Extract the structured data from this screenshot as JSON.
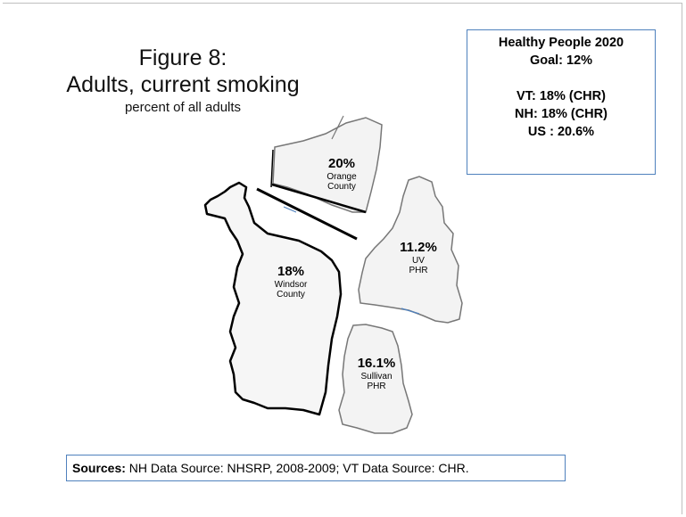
{
  "figure": {
    "title_line1": "Figure 8:",
    "title_line2": "Adults, current smoking",
    "subtitle": "percent of all adults"
  },
  "healthy_people_box": {
    "line1": "Healthy People 2020",
    "line2": "Goal:  12%",
    "line3": "VT:  18% (CHR)",
    "line4": "NH:  18%  (CHR)",
    "line5": "US : 20.6%"
  },
  "regions": [
    {
      "value": "20%",
      "name_line1": "Orange",
      "name_line2": "County",
      "percent": 20
    },
    {
      "value": "18%",
      "name_line1": "Windsor",
      "name_line2": "County",
      "percent": 18
    },
    {
      "value": "11.2%",
      "name_line1": "UV",
      "name_line2": "PHR",
      "percent": 11.2
    },
    {
      "value": "16.1%",
      "name_line1": "Sullivan",
      "name_line2": "PHR",
      "percent": 16.1
    }
  ],
  "sources": {
    "label": "Sources:",
    "text": " NH Data Source: NHSRP, 2008-2009; VT Data Source: CHR."
  },
  "colors": {
    "box_border": "#4f81bd",
    "region_fill": "#f3f3f3",
    "border_line": "#000000"
  }
}
